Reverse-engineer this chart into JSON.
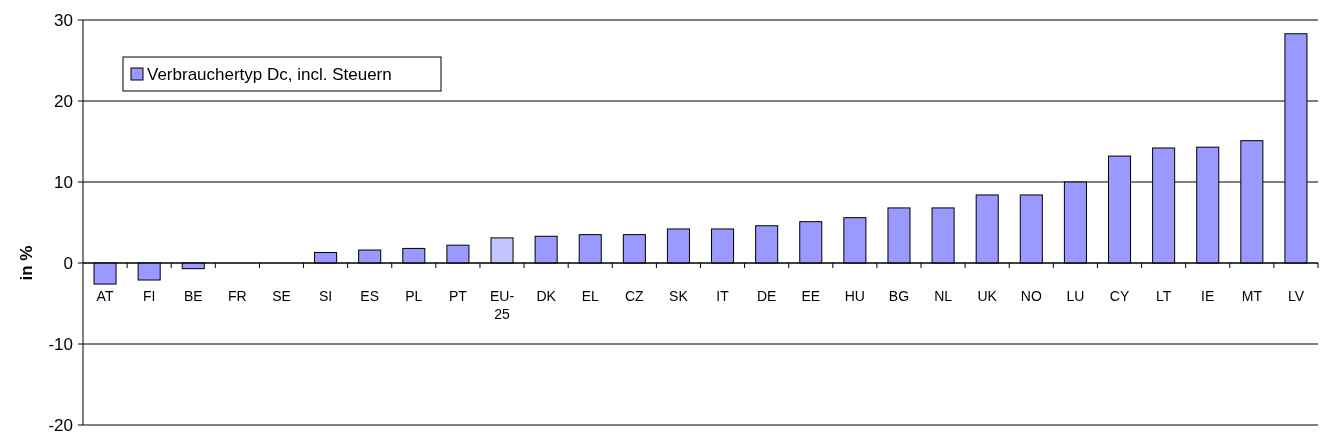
{
  "chart_data": {
    "type": "bar",
    "ylabel": "in %",
    "categories": [
      "AT",
      "FI",
      "BE",
      "FR",
      "SE",
      "SI",
      "ES",
      "PL",
      "PT",
      "EU-25",
      "DK",
      "EL",
      "CZ",
      "SK",
      "IT",
      "DE",
      "EE",
      "HU",
      "BG",
      "NL",
      "UK",
      "NO",
      "LU",
      "CY",
      "LT",
      "IE",
      "MT",
      "LV"
    ],
    "series": [
      {
        "name": "Verbrauchertyp Dc, incl. Steuern",
        "color": "#9999ff",
        "colors": [
          "#9999ff",
          "#9999ff",
          "#9999ff",
          "#9999ff",
          "#9999ff",
          "#9999ff",
          "#9999ff",
          "#9999ff",
          "#9999ff",
          "#c4c4ff",
          "#9999ff",
          "#9999ff",
          "#9999ff",
          "#9999ff",
          "#9999ff",
          "#9999ff",
          "#9999ff",
          "#9999ff",
          "#9999ff",
          "#9999ff",
          "#9999ff",
          "#9999ff",
          "#9999ff",
          "#9999ff",
          "#9999ff",
          "#9999ff",
          "#9999ff",
          "#9999ff"
        ],
        "values": [
          -2.6,
          -2.1,
          -0.7,
          0,
          0,
          1.3,
          1.6,
          1.8,
          2.2,
          3.1,
          3.3,
          3.5,
          3.5,
          4.2,
          4.2,
          4.6,
          5.1,
          5.6,
          6.8,
          6.8,
          8.4,
          8.4,
          10,
          13.2,
          14.2,
          14.3,
          15.1,
          28.3
        ]
      }
    ],
    "ylim": [
      -20,
      30
    ],
    "yticks": [
      -20,
      -10,
      0,
      10,
      20,
      30
    ],
    "grid": "y",
    "legend": "top left"
  }
}
